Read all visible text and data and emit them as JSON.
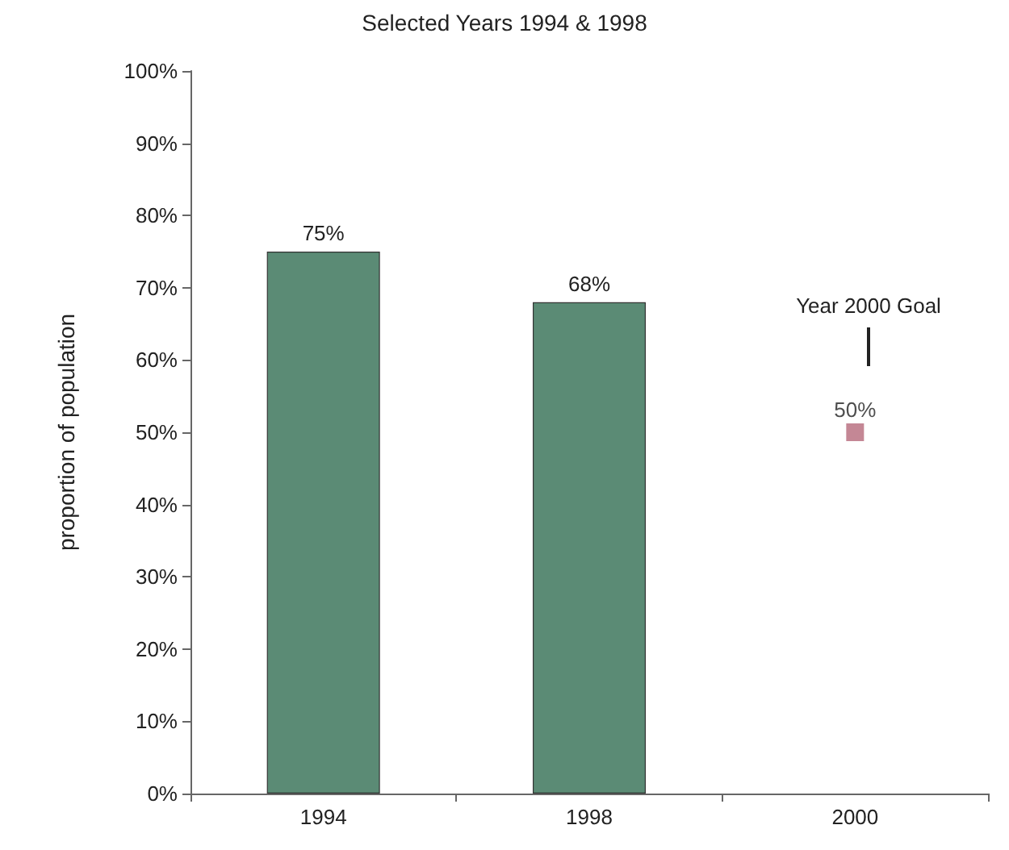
{
  "chart_data": {
    "type": "bar",
    "title": "Selected Years 1994 & 1998",
    "ylabel": "proportion of population",
    "categories": [
      "1994",
      "1998",
      "2000"
    ],
    "series": [
      {
        "color": "#5b8b75",
        "values": [
          75,
          68,
          null
        ],
        "value_labels": [
          "75%",
          "68%",
          null
        ]
      },
      {
        "type": "scatter",
        "marker": "square",
        "color": "#b5697a",
        "values": [
          null,
          null,
          50
        ],
        "value_labels": [
          null,
          null,
          "50%"
        ]
      }
    ],
    "annotations": [
      "Year 2000 Goal"
    ],
    "ylim": [
      0,
      100
    ],
    "yticks": [
      {
        "value": 0,
        "label": "0%"
      },
      {
        "value": 10,
        "label": "10%"
      },
      {
        "value": 20,
        "label": "20%"
      },
      {
        "value": 30,
        "label": "30%"
      },
      {
        "value": 40,
        "label": "40%"
      },
      {
        "value": 50,
        "label": "50%"
      },
      {
        "value": 60,
        "label": "60%"
      },
      {
        "value": 70,
        "label": "70%"
      },
      {
        "value": 80,
        "label": "80%"
      },
      {
        "value": 90,
        "label": "90%"
      },
      {
        "value": 100,
        "label": "100%"
      }
    ],
    "grid": false
  }
}
